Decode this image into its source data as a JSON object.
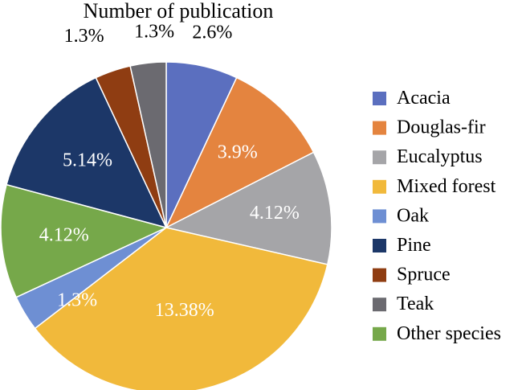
{
  "chart_data": {
    "type": "pie",
    "title": "Number of publication",
    "legend_position": "right",
    "slices": [
      {
        "name": "Acacia",
        "value": 2.6,
        "label": "2.6%",
        "color": "#5b6fbf",
        "label_color": "#000000"
      },
      {
        "name": "Douglas-fir",
        "value": 3.9,
        "label": "3.9%",
        "color": "#e4843f",
        "label_color": "#ffffff"
      },
      {
        "name": "Eucalyptus",
        "value": 4.12,
        "label": "4.12%",
        "color": "#a5a5a8",
        "label_color": "#ffffff"
      },
      {
        "name": "Mixed forest",
        "value": 13.38,
        "label": "13.38%",
        "color": "#f1b93b",
        "label_color": "#ffffff"
      },
      {
        "name": "Oak",
        "value": 1.3,
        "label": "1.3%",
        "color": "#6e8fd3",
        "label_color": "#ffffff"
      },
      {
        "name": "Other species",
        "value": 4.12,
        "label": "4.12%",
        "color": "#76a84a",
        "label_color": "#ffffff"
      },
      {
        "name": "Pine",
        "value": 5.14,
        "label": "5.14%",
        "color": "#1c3768",
        "label_color": "#ffffff"
      },
      {
        "name": "Spruce",
        "value": 1.3,
        "label": "1.3%",
        "color": "#8f3d12",
        "label_color": "#000000"
      },
      {
        "name": "Teak",
        "value": 1.3,
        "label": "1.3%",
        "color": "#6b6a70",
        "label_color": "#000000"
      }
    ],
    "legend": [
      "Acacia",
      "Douglas-fir",
      "Eucalyptus",
      "Mixed forest",
      "Oak",
      "Pine",
      "Spruce",
      "Teak",
      "Other species"
    ]
  }
}
